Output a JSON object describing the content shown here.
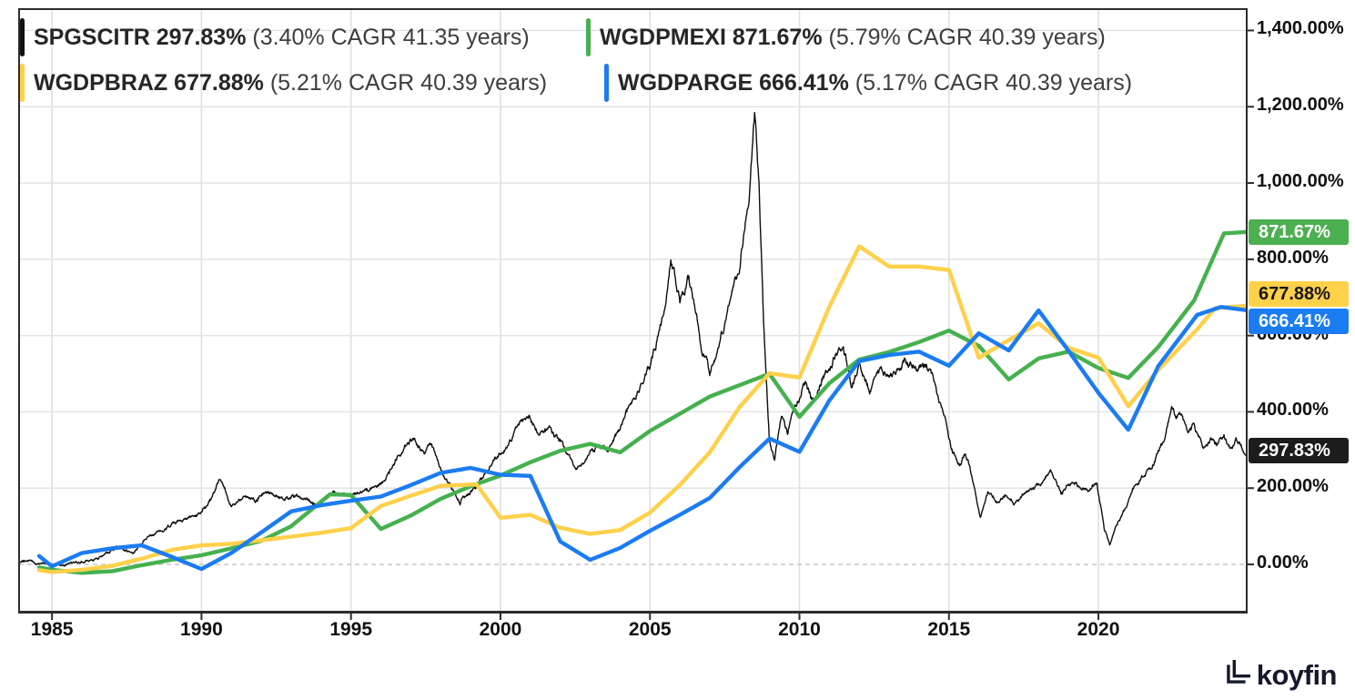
{
  "legend": {
    "items": [
      {
        "ticker": "SPGSCITR",
        "value": "297.83%",
        "note": "(3.40% CAGR 41.35 years)",
        "color": "#111111"
      },
      {
        "ticker": "WGDPMEXI",
        "value": "871.67%",
        "note": "(5.79% CAGR 40.39 years)",
        "color": "#45b14e"
      },
      {
        "ticker": "WGDPBRAZ",
        "value": "677.88%",
        "note": "(5.21% CAGR 40.39 years)",
        "color": "#ffd04a"
      },
      {
        "ticker": "WGDPARGE",
        "value": "666.41%",
        "note": "(5.17% CAGR 40.39 years)",
        "color": "#1b7cf2"
      }
    ]
  },
  "watermark": {
    "brand": "koyfin"
  },
  "chart_data": {
    "type": "line",
    "title": "",
    "grid": true,
    "legend_position": "top-left",
    "x_axis": {
      "ticks": [
        1985,
        1990,
        1995,
        2000,
        2005,
        2010,
        2015,
        2020
      ],
      "range": [
        1983.9,
        2024.96
      ]
    },
    "y_axis": {
      "tick_values": [
        0,
        200,
        400,
        600,
        800,
        1000,
        1200,
        1400
      ],
      "tick_labels": [
        "0.00%",
        "200.00%",
        "400.00%",
        "600.00%",
        "800.00%",
        "1,000.00%",
        "1,200.00%",
        "1,400.00%"
      ],
      "zero_line_dashed": true,
      "range": [
        -124,
        1456
      ]
    },
    "series": [
      {
        "name": "SPGSCITR",
        "style": "noisy-daily",
        "color": "#0d0d0d",
        "line_width": 1.4,
        "end_label": {
          "text": "297.83%",
          "bg": "#1c1c1c",
          "fg": "#ffffff",
          "value": 297.83
        },
        "points": [
          [
            1983.9,
            5
          ],
          [
            1984.2,
            12
          ],
          [
            1984.5,
            3
          ],
          [
            1984.8,
            8
          ],
          [
            1985.3,
            -2
          ],
          [
            1986.0,
            7
          ],
          [
            1986.6,
            18
          ],
          [
            1987.2,
            48
          ],
          [
            1987.7,
            30
          ],
          [
            1988.2,
            72
          ],
          [
            1988.8,
            95
          ],
          [
            1989.4,
            118
          ],
          [
            1990.0,
            138
          ],
          [
            1990.3,
            165
          ],
          [
            1990.62,
            232
          ],
          [
            1991.0,
            152
          ],
          [
            1991.4,
            180
          ],
          [
            1991.8,
            165
          ],
          [
            1992.2,
            188
          ],
          [
            1992.7,
            172
          ],
          [
            1993.2,
            180
          ],
          [
            1993.8,
            158
          ],
          [
            1994.4,
            185
          ],
          [
            1995.0,
            183
          ],
          [
            1995.6,
            196
          ],
          [
            1996.1,
            215
          ],
          [
            1996.5,
            268
          ],
          [
            1996.8,
            310
          ],
          [
            1997.1,
            335
          ],
          [
            1997.4,
            290
          ],
          [
            1997.7,
            315
          ],
          [
            1998.1,
            225
          ],
          [
            1998.65,
            167
          ],
          [
            1999.2,
            205
          ],
          [
            1999.8,
            272
          ],
          [
            2000.2,
            312
          ],
          [
            2000.6,
            362
          ],
          [
            2000.95,
            388
          ],
          [
            2001.3,
            342
          ],
          [
            2001.7,
            352
          ],
          [
            2002.1,
            312
          ],
          [
            2002.55,
            243
          ],
          [
            2003.0,
            292
          ],
          [
            2003.3,
            312
          ],
          [
            2003.6,
            298
          ],
          [
            2004.0,
            360
          ],
          [
            2004.4,
            425
          ],
          [
            2005.0,
            518
          ],
          [
            2005.4,
            640
          ],
          [
            2005.7,
            795
          ],
          [
            2006.0,
            690
          ],
          [
            2006.3,
            750
          ],
          [
            2006.7,
            580
          ],
          [
            2007.0,
            500
          ],
          [
            2007.5,
            628
          ],
          [
            2008.0,
            790
          ],
          [
            2008.3,
            960
          ],
          [
            2008.5,
            1186
          ],
          [
            2008.65,
            1010
          ],
          [
            2008.8,
            640
          ],
          [
            2009.0,
            330
          ],
          [
            2009.17,
            267
          ],
          [
            2009.4,
            395
          ],
          [
            2009.6,
            345
          ],
          [
            2009.9,
            425
          ],
          [
            2010.2,
            472
          ],
          [
            2010.5,
            425
          ],
          [
            2010.8,
            492
          ],
          [
            2011.1,
            532
          ],
          [
            2011.45,
            578
          ],
          [
            2011.75,
            470
          ],
          [
            2012.0,
            532
          ],
          [
            2012.35,
            455
          ],
          [
            2012.7,
            512
          ],
          [
            2013.1,
            492
          ],
          [
            2013.5,
            532
          ],
          [
            2013.9,
            512
          ],
          [
            2014.2,
            522
          ],
          [
            2014.5,
            480
          ],
          [
            2014.8,
            398
          ],
          [
            2015.1,
            300
          ],
          [
            2015.35,
            262
          ],
          [
            2015.55,
            291
          ],
          [
            2015.8,
            225
          ],
          [
            2016.05,
            127
          ],
          [
            2016.3,
            190
          ],
          [
            2016.6,
            165
          ],
          [
            2016.9,
            182
          ],
          [
            2017.2,
            162
          ],
          [
            2017.5,
            186
          ],
          [
            2017.8,
            200
          ],
          [
            2018.1,
            216
          ],
          [
            2018.4,
            243
          ],
          [
            2018.75,
            188
          ],
          [
            2019.1,
            216
          ],
          [
            2019.4,
            200
          ],
          [
            2019.7,
            196
          ],
          [
            2019.95,
            210
          ],
          [
            2020.2,
            92
          ],
          [
            2020.38,
            52
          ],
          [
            2020.6,
            102
          ],
          [
            2020.9,
            142
          ],
          [
            2021.2,
            200
          ],
          [
            2021.5,
            232
          ],
          [
            2021.8,
            248
          ],
          [
            2022.0,
            292
          ],
          [
            2022.2,
            332
          ],
          [
            2022.45,
            410
          ],
          [
            2022.6,
            372
          ],
          [
            2022.8,
            392
          ],
          [
            2023.0,
            342
          ],
          [
            2023.2,
            362
          ],
          [
            2023.5,
            302
          ],
          [
            2023.8,
            332
          ],
          [
            2024.0,
            312
          ],
          [
            2024.2,
            342
          ],
          [
            2024.45,
            298
          ],
          [
            2024.6,
            322
          ],
          [
            2024.96,
            297.83
          ]
        ]
      },
      {
        "name": "WGDPMEXI",
        "style": "smooth-annual",
        "color": "#45b14e",
        "line_width": 4.4,
        "end_label": {
          "text": "871.67%",
          "bg": "#4caf50",
          "fg": "#ffffff",
          "value": 871.67
        },
        "points": [
          [
            1984.57,
            -8
          ],
          [
            1985,
            -14
          ],
          [
            1986,
            -22
          ],
          [
            1987,
            -18
          ],
          [
            1988,
            -2
          ],
          [
            1989,
            12
          ],
          [
            1990,
            24
          ],
          [
            1991,
            42
          ],
          [
            1992,
            62
          ],
          [
            1993,
            100
          ],
          [
            1994.3,
            184
          ],
          [
            1995,
            182
          ],
          [
            1996,
            93
          ],
          [
            1997,
            128
          ],
          [
            1998,
            172
          ],
          [
            1999,
            205
          ],
          [
            2000,
            233
          ],
          [
            2001,
            268
          ],
          [
            2002,
            298
          ],
          [
            2003,
            316
          ],
          [
            2004,
            294
          ],
          [
            2005,
            350
          ],
          [
            2006,
            395
          ],
          [
            2007,
            440
          ],
          [
            2008,
            470
          ],
          [
            2009,
            500
          ],
          [
            2010,
            387
          ],
          [
            2011,
            475
          ],
          [
            2012,
            537
          ],
          [
            2013,
            557
          ],
          [
            2014,
            583
          ],
          [
            2015,
            613
          ],
          [
            2016,
            573
          ],
          [
            2017,
            485
          ],
          [
            2018,
            540
          ],
          [
            2019,
            558
          ],
          [
            2020,
            515
          ],
          [
            2021,
            489
          ],
          [
            2022,
            570
          ],
          [
            2023.2,
            692
          ],
          [
            2024.2,
            868
          ],
          [
            2024.96,
            871.67
          ]
        ]
      },
      {
        "name": "WGDPBRAZ",
        "style": "smooth-annual",
        "color": "#ffd04a",
        "line_width": 4.4,
        "end_label": {
          "text": "677.88%",
          "bg": "#ffd04a",
          "fg": "#161616",
          "value": 677.88
        },
        "points": [
          [
            1984.57,
            -15
          ],
          [
            1985,
            -20
          ],
          [
            1986,
            -14
          ],
          [
            1987,
            -4
          ],
          [
            1988,
            15
          ],
          [
            1989,
            38
          ],
          [
            1990,
            50
          ],
          [
            1991,
            54
          ],
          [
            1992,
            63
          ],
          [
            1993,
            73
          ],
          [
            1994,
            83
          ],
          [
            1995,
            95
          ],
          [
            1996,
            153
          ],
          [
            1997,
            180
          ],
          [
            1998,
            206
          ],
          [
            1999.2,
            210
          ],
          [
            2000,
            122
          ],
          [
            2001,
            130
          ],
          [
            2002,
            96
          ],
          [
            2003,
            80
          ],
          [
            2004,
            90
          ],
          [
            2005,
            136
          ],
          [
            2006,
            208
          ],
          [
            2007,
            294
          ],
          [
            2008,
            413
          ],
          [
            2009,
            501
          ],
          [
            2010,
            490
          ],
          [
            2011,
            676
          ],
          [
            2012,
            834
          ],
          [
            2013,
            781
          ],
          [
            2014,
            781
          ],
          [
            2015,
            772
          ],
          [
            2016,
            542
          ],
          [
            2017,
            588
          ],
          [
            2018,
            632
          ],
          [
            2019,
            568
          ],
          [
            2020,
            542
          ],
          [
            2021,
            415
          ],
          [
            2022,
            510
          ],
          [
            2023.3,
            616
          ],
          [
            2023.9,
            672
          ],
          [
            2024.96,
            677.88
          ]
        ]
      },
      {
        "name": "WGDPARGE",
        "style": "smooth-annual",
        "color": "#1b7cf2",
        "line_width": 4.4,
        "end_label": {
          "text": "666.41%",
          "bg": "#1b7cf2",
          "fg": "#ffffff",
          "value": 666.41
        },
        "points": [
          [
            1984.57,
            22
          ],
          [
            1985,
            -5
          ],
          [
            1986,
            30
          ],
          [
            1987,
            42
          ],
          [
            1988,
            50
          ],
          [
            1989,
            20
          ],
          [
            1990,
            -12
          ],
          [
            1991,
            30
          ],
          [
            1992,
            84
          ],
          [
            1993,
            139
          ],
          [
            1994,
            155
          ],
          [
            1995,
            167
          ],
          [
            1996,
            178
          ],
          [
            1997,
            208
          ],
          [
            1998,
            240
          ],
          [
            1999,
            253
          ],
          [
            2000,
            235
          ],
          [
            2001,
            232
          ],
          [
            2002,
            60
          ],
          [
            2003,
            12
          ],
          [
            2004,
            43
          ],
          [
            2005,
            88
          ],
          [
            2006,
            130
          ],
          [
            2007,
            174
          ],
          [
            2008,
            255
          ],
          [
            2009,
            330
          ],
          [
            2010,
            295
          ],
          [
            2011,
            430
          ],
          [
            2012,
            533
          ],
          [
            2013,
            549
          ],
          [
            2014,
            558
          ],
          [
            2015,
            521
          ],
          [
            2016,
            606
          ],
          [
            2017,
            561
          ],
          [
            2018,
            666
          ],
          [
            2019,
            560
          ],
          [
            2020,
            450
          ],
          [
            2021,
            353
          ],
          [
            2022,
            520
          ],
          [
            2023.3,
            654
          ],
          [
            2024.1,
            675
          ],
          [
            2024.96,
            666.41
          ]
        ]
      }
    ]
  }
}
